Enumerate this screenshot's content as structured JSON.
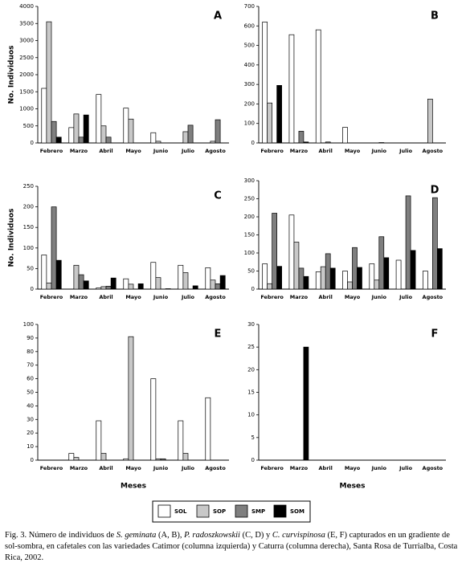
{
  "legend": [
    {
      "name": "SOL",
      "color": "#ffffff"
    },
    {
      "name": "SOP",
      "color": "#c8c8c8"
    },
    {
      "name": "SMP",
      "color": "#7f7f7f"
    },
    {
      "name": "SOM",
      "color": "#000000"
    }
  ],
  "chart_data": [
    {
      "type": "bar",
      "title": "A",
      "ylabel": "No. Individuos",
      "categories": [
        "Febrero",
        "Marzo",
        "Abril",
        "Mayo",
        "Junio",
        "Julio",
        "Agosto"
      ],
      "ylim": [
        0,
        4000
      ],
      "yticks": [
        0,
        500,
        1000,
        1500,
        2000,
        2500,
        3000,
        3500,
        4000
      ],
      "series": [
        {
          "values": [
            1600,
            450,
            1420,
            1020,
            300,
            0,
            0
          ]
        },
        {
          "values": [
            3550,
            850,
            500,
            700,
            50,
            330,
            50
          ]
        },
        {
          "values": [
            630,
            170,
            170,
            0,
            0,
            520,
            680
          ]
        },
        {
          "values": [
            170,
            820,
            0,
            0,
            0,
            0,
            0
          ]
        }
      ]
    },
    {
      "type": "bar",
      "title": "B",
      "categories": [
        "Febrero",
        "Marzo",
        "Abril",
        "Mayo",
        "Junio",
        "Julio",
        "Agosto"
      ],
      "ylim": [
        0,
        700
      ],
      "yticks": [
        0,
        100,
        200,
        300,
        400,
        500,
        600,
        700
      ],
      "series": [
        {
          "values": [
            620,
            555,
            580,
            80,
            0,
            0,
            0
          ]
        },
        {
          "values": [
            205,
            0,
            0,
            0,
            0,
            0,
            225
          ]
        },
        {
          "values": [
            0,
            60,
            5,
            0,
            2,
            0,
            0
          ]
        },
        {
          "values": [
            295,
            5,
            0,
            0,
            0,
            0,
            0
          ]
        }
      ]
    },
    {
      "type": "bar",
      "title": "C",
      "ylabel": "No. Individuos",
      "categories": [
        "Febrero",
        "Marzo",
        "Abril",
        "Mayo",
        "Junio",
        "Julio",
        "Agosto"
      ],
      "ylim": [
        0,
        250
      ],
      "yticks": [
        0,
        50,
        100,
        150,
        200,
        250
      ],
      "series": [
        {
          "values": [
            83,
            0,
            3,
            25,
            65,
            58,
            52
          ]
        },
        {
          "values": [
            15,
            58,
            6,
            12,
            28,
            40,
            22
          ]
        },
        {
          "values": [
            200,
            35,
            7,
            0,
            0,
            0,
            13
          ]
        },
        {
          "values": [
            70,
            20,
            27,
            13,
            1,
            8,
            33
          ]
        }
      ]
    },
    {
      "type": "bar",
      "title": "D",
      "categories": [
        "Febrero",
        "Marzo",
        "Abril",
        "Mayo",
        "Junio",
        "Julio",
        "Agosto"
      ],
      "ylim": [
        0,
        300
      ],
      "yticks": [
        0,
        50,
        100,
        150,
        200,
        250,
        300
      ],
      "series": [
        {
          "values": [
            70,
            205,
            48,
            50,
            70,
            80,
            50
          ]
        },
        {
          "values": [
            15,
            130,
            62,
            20,
            25,
            0,
            0
          ]
        },
        {
          "values": [
            210,
            58,
            98,
            115,
            145,
            258,
            253
          ]
        },
        {
          "values": [
            63,
            35,
            58,
            60,
            87,
            107,
            112
          ]
        }
      ]
    },
    {
      "type": "bar",
      "title": "E",
      "xlabel": "Meses",
      "categories": [
        "Febrero",
        "Marzo",
        "Abril",
        "Mayo",
        "Junio",
        "Julio",
        "Agosto"
      ],
      "ylim": [
        0,
        100
      ],
      "yticks": [
        0,
        10,
        20,
        30,
        40,
        50,
        60,
        70,
        80,
        90,
        100
      ],
      "series": [
        {
          "values": [
            0,
            5,
            29,
            1,
            60,
            29,
            46
          ]
        },
        {
          "values": [
            0,
            2,
            5,
            91,
            1,
            5,
            0
          ]
        },
        {
          "values": [
            0,
            0,
            0,
            0,
            1,
            0,
            0
          ]
        },
        {
          "values": [
            0,
            0,
            0,
            0,
            0,
            0,
            0
          ]
        }
      ]
    },
    {
      "type": "bar",
      "title": "F",
      "xlabel": "Meses",
      "categories": [
        "Febrero",
        "Marzo",
        "Abril",
        "Mayo",
        "Junio",
        "Julio",
        "Agosto"
      ],
      "ylim": [
        0,
        30
      ],
      "yticks": [
        0,
        5,
        10,
        15,
        20,
        25,
        30
      ],
      "series": [
        {
          "values": [
            0,
            0,
            0,
            0,
            0,
            0,
            0
          ]
        },
        {
          "values": [
            0,
            0,
            0,
            0,
            0,
            0,
            0
          ]
        },
        {
          "values": [
            0,
            0,
            0,
            0,
            0,
            0,
            0
          ]
        },
        {
          "values": [
            0,
            25,
            0,
            0,
            0,
            0,
            0
          ]
        }
      ]
    }
  ],
  "caption": [
    "Fig. 3. Número de individuos de ",
    "S. geminata",
    " (A, B), ",
    "P. radoszkowskii",
    " (C, D) y ",
    "C. curvispinosa",
    " (E, F) capturados en un gradiente de sol-sombra, en cafetales con las variedades Catimor (columna izquierda) y Caturra (columna derecha), Santa Rosa de Turrialba, Costa Rica, 2002."
  ]
}
